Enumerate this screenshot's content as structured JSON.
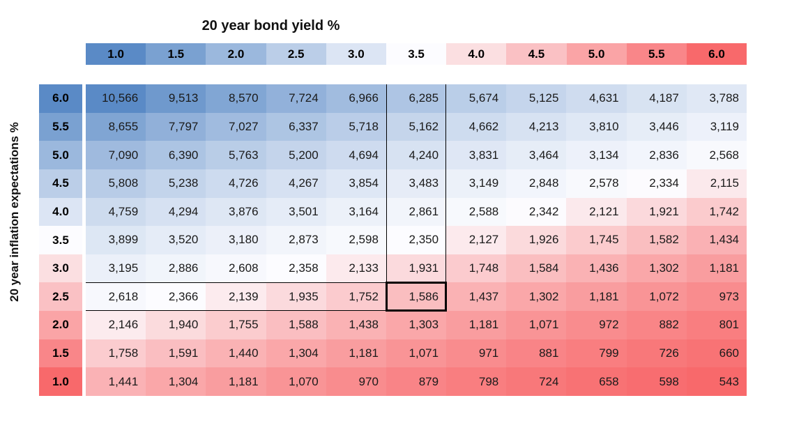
{
  "page": {
    "background": "#FFFFFF"
  },
  "chart_data": {
    "type": "heatmap",
    "xlabel": "20 year bond yield %",
    "ylabel": "20 year inflation expectations %",
    "x_categories": [
      "1.0",
      "1.5",
      "2.0",
      "2.5",
      "3.0",
      "3.5",
      "4.0",
      "4.5",
      "5.0",
      "5.5",
      "6.0"
    ],
    "y_categories": [
      "6.0",
      "5.5",
      "5.0",
      "4.5",
      "4.0",
      "3.5",
      "3.0",
      "2.5",
      "2.0",
      "1.5",
      "1.0"
    ],
    "rows": [
      [
        10566,
        9513,
        8570,
        7724,
        6966,
        6285,
        5674,
        5125,
        4631,
        4187,
        3788
      ],
      [
        8655,
        7797,
        7027,
        6337,
        5718,
        5162,
        4662,
        4213,
        3810,
        3446,
        3119
      ],
      [
        7090,
        6390,
        5763,
        5200,
        4694,
        4240,
        3831,
        3464,
        3134,
        2836,
        2568
      ],
      [
        5808,
        5238,
        4726,
        4267,
        3854,
        3483,
        3149,
        2848,
        2578,
        2334,
        2115
      ],
      [
        4759,
        4294,
        3876,
        3501,
        3164,
        2861,
        2588,
        2342,
        2121,
        1921,
        1742
      ],
      [
        3899,
        3520,
        3180,
        2873,
        2598,
        2350,
        2127,
        1926,
        1745,
        1582,
        1434
      ],
      [
        3195,
        2886,
        2608,
        2358,
        2133,
        1931,
        1748,
        1584,
        1436,
        1302,
        1181
      ],
      [
        2618,
        2366,
        2139,
        1935,
        1752,
        1586,
        1437,
        1302,
        1181,
        1072,
        973
      ],
      [
        2146,
        1940,
        1755,
        1588,
        1438,
        1303,
        1181,
        1071,
        972,
        882,
        801
      ],
      [
        1758,
        1591,
        1440,
        1304,
        1181,
        1071,
        971,
        881,
        799,
        726,
        660
      ],
      [
        1441,
        1304,
        1181,
        1070,
        970,
        879,
        798,
        724,
        658,
        598,
        543
      ]
    ],
    "number_format": "#,##0",
    "color_scale": {
      "min_color": "#F8696B",
      "mid_color": "#FCFCFF",
      "max_color": "#5A8AC6",
      "midpoint": "median",
      "header_scale_center": 3.5
    },
    "highlight": {
      "column": "3.5",
      "row": "2.5",
      "highlighted_value": 1586,
      "outline_color": "#000000"
    },
    "legend": "none",
    "grid": "off"
  }
}
